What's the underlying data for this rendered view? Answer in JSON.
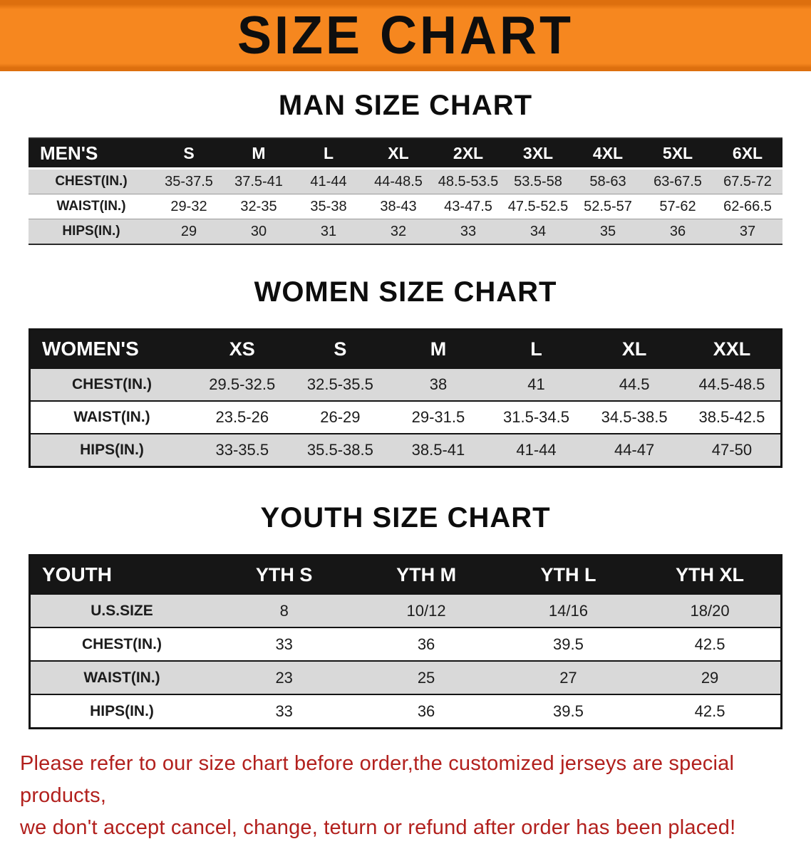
{
  "banner": {
    "title": "SIZE CHART"
  },
  "colors": {
    "banner_bg": "#f6871f",
    "table_header_bg": "#161616",
    "row_alt_bg": "#d9d9d9",
    "footer_text": "#b2201d"
  },
  "tables": [
    {
      "heading": "MAN SIZE CHART",
      "header_label": "MEN'S",
      "columns": [
        "S",
        "M",
        "L",
        "XL",
        "2XL",
        "3XL",
        "4XL",
        "5XL",
        "6XL"
      ],
      "rows": [
        {
          "label": "CHEST(IN.)",
          "values": [
            "35-37.5",
            "37.5-41",
            "41-44",
            "44-48.5",
            "48.5-53.5",
            "53.5-58",
            "58-63",
            "63-67.5",
            "67.5-72"
          ]
        },
        {
          "label": "WAIST(IN.)",
          "values": [
            "29-32",
            "32-35",
            "35-38",
            "38-43",
            "43-47.5",
            "47.5-52.5",
            "52.5-57",
            "57-62",
            "62-66.5"
          ]
        },
        {
          "label": "HIPS(IN.)",
          "values": [
            "29",
            "30",
            "31",
            "32",
            "33",
            "34",
            "35",
            "36",
            "37"
          ]
        }
      ]
    },
    {
      "heading": "WOMEN SIZE CHART",
      "header_label": "WOMEN'S",
      "columns": [
        "XS",
        "S",
        "M",
        "L",
        "XL",
        "XXL"
      ],
      "rows": [
        {
          "label": "CHEST(IN.)",
          "values": [
            "29.5-32.5",
            "32.5-35.5",
            "38",
            "41",
            "44.5",
            "44.5-48.5"
          ]
        },
        {
          "label": "WAIST(IN.)",
          "values": [
            "23.5-26",
            "26-29",
            "29-31.5",
            "31.5-34.5",
            "34.5-38.5",
            "38.5-42.5"
          ]
        },
        {
          "label": "HIPS(IN.)",
          "values": [
            "33-35.5",
            "35.5-38.5",
            "38.5-41",
            "41-44",
            "44-47",
            "47-50"
          ]
        }
      ]
    },
    {
      "heading": "YOUTH SIZE CHART",
      "header_label": "YOUTH",
      "columns": [
        "YTH S",
        "YTH M",
        "YTH L",
        "YTH XL"
      ],
      "rows": [
        {
          "label": "U.S.SIZE",
          "values": [
            "8",
            "10/12",
            "14/16",
            "18/20"
          ]
        },
        {
          "label": "CHEST(IN.)",
          "values": [
            "33",
            "36",
            "39.5",
            "42.5"
          ]
        },
        {
          "label": "WAIST(IN.)",
          "values": [
            "23",
            "25",
            "27",
            "29"
          ]
        },
        {
          "label": "HIPS(IN.)",
          "values": [
            "33",
            "36",
            "39.5",
            "42.5"
          ]
        }
      ]
    }
  ],
  "footer": {
    "line1": "Please refer to our size chart before order,the customized jerseys are special products,",
    "line2": "we don't accept cancel, change, teturn or refund after order has been placed!"
  }
}
